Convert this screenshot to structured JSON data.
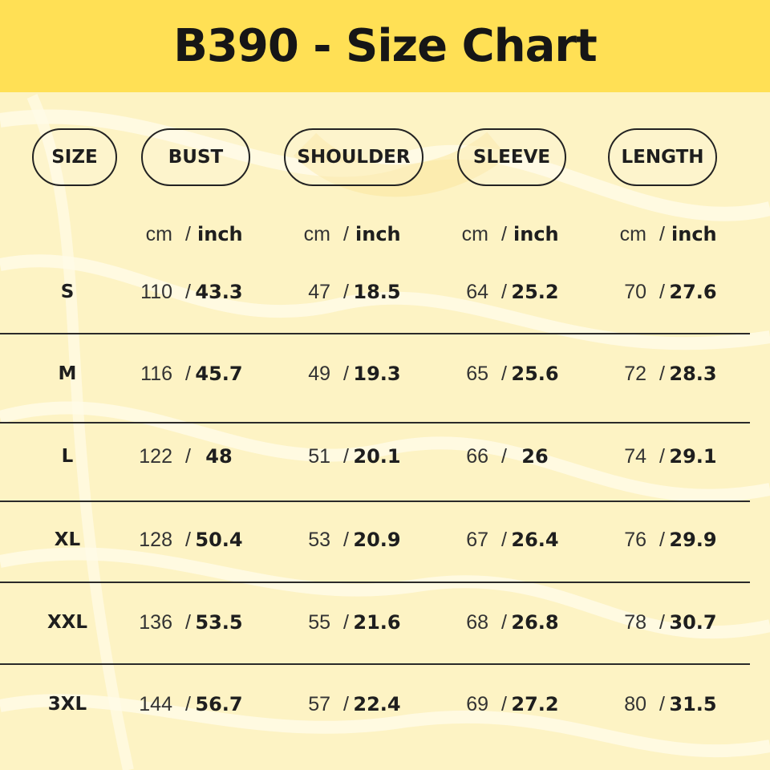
{
  "title": "B390 - Size Chart",
  "colors": {
    "header": "#ffe055",
    "background": "#fdf3c4",
    "text": "#1e1e1e"
  },
  "columns": [
    "SIZE",
    "BUST",
    "SHOULDER",
    "SLEEVE",
    "LENGTH"
  ],
  "units": {
    "cm": "cm",
    "inch": "inch",
    "slash": "/"
  },
  "rows": [
    {
      "size": "S",
      "values": [
        [
          "110",
          "43.3"
        ],
        [
          "47",
          "18.5"
        ],
        [
          "64",
          "25.2"
        ],
        [
          "70",
          "27.6"
        ]
      ]
    },
    {
      "size": "M",
      "values": [
        [
          "116",
          "45.7"
        ],
        [
          "49",
          "19.3"
        ],
        [
          "65",
          "25.6"
        ],
        [
          "72",
          "28.3"
        ]
      ]
    },
    {
      "size": "L",
      "values": [
        [
          "122",
          "48"
        ],
        [
          "51",
          "20.1"
        ],
        [
          "66",
          "26"
        ],
        [
          "74",
          "29.1"
        ]
      ]
    },
    {
      "size": "XL",
      "values": [
        [
          "128",
          "50.4"
        ],
        [
          "53",
          "20.9"
        ],
        [
          "67",
          "26.4"
        ],
        [
          "76",
          "29.9"
        ]
      ]
    },
    {
      "size": "XXL",
      "values": [
        [
          "136",
          "53.5"
        ],
        [
          "55",
          "21.6"
        ],
        [
          "68",
          "26.8"
        ],
        [
          "78",
          "30.7"
        ]
      ]
    },
    {
      "size": "3XL",
      "values": [
        [
          "144",
          "56.7"
        ],
        [
          "57",
          "22.4"
        ],
        [
          "69",
          "27.2"
        ],
        [
          "80",
          "31.5"
        ]
      ]
    }
  ]
}
